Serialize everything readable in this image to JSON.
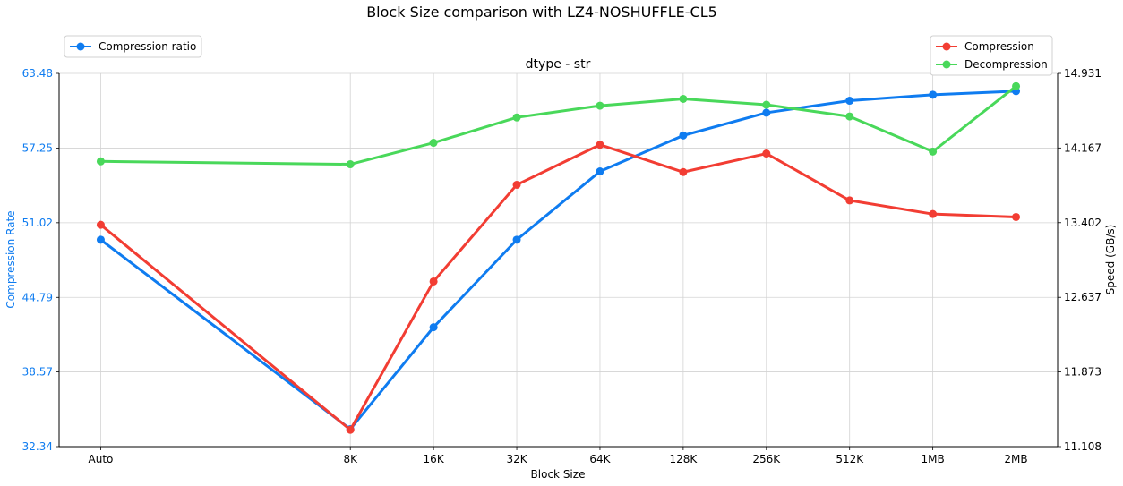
{
  "chart_data": {
    "type": "line",
    "title": "Block Size comparison with LZ4-NOSHUFFLE-CL5",
    "subtitle": "dtype - str",
    "xlabel": "Block Size",
    "ylabel_left": "Compression Rate",
    "ylabel_right": "Speed (GB/s)",
    "categories": [
      "Auto",
      "8K",
      "16K",
      "32K",
      "64K",
      "128K",
      "256K",
      "512K",
      "1MB",
      "2MB"
    ],
    "category_positions": [
      0,
      3,
      4,
      5,
      6,
      7,
      8,
      9,
      10,
      11
    ],
    "left_axis": {
      "ylim": [
        32.34,
        63.48
      ],
      "ticks": [
        "32.34",
        "38.57",
        "44.79",
        "51.02",
        "57.25",
        "63.48"
      ]
    },
    "right_axis": {
      "ylim": [
        11.108,
        14.931
      ],
      "ticks": [
        "11.108",
        "11.873",
        "12.637",
        "13.402",
        "14.167",
        "14.931"
      ]
    },
    "grid": true,
    "series": [
      {
        "name": "Compression ratio",
        "axis": "left",
        "color": "#0f7cf0",
        "values": [
          49.6,
          33.8,
          42.3,
          49.6,
          55.3,
          58.3,
          60.2,
          61.2,
          61.7,
          62.0
        ]
      },
      {
        "name": "Compression",
        "axis": "right",
        "color": "#f23d33",
        "values": [
          13.38,
          11.28,
          12.8,
          13.79,
          14.2,
          13.92,
          14.11,
          13.63,
          13.49,
          13.46
        ]
      },
      {
        "name": "Decompression",
        "axis": "right",
        "color": "#49d85a",
        "values": [
          14.03,
          14.0,
          14.22,
          14.48,
          14.6,
          14.67,
          14.61,
          14.49,
          14.13,
          14.8
        ]
      }
    ],
    "legends": [
      {
        "position": "upper-left",
        "entries": [
          "Compression ratio"
        ]
      },
      {
        "position": "upper-right",
        "entries": [
          "Compression",
          "Decompression"
        ]
      }
    ]
  }
}
